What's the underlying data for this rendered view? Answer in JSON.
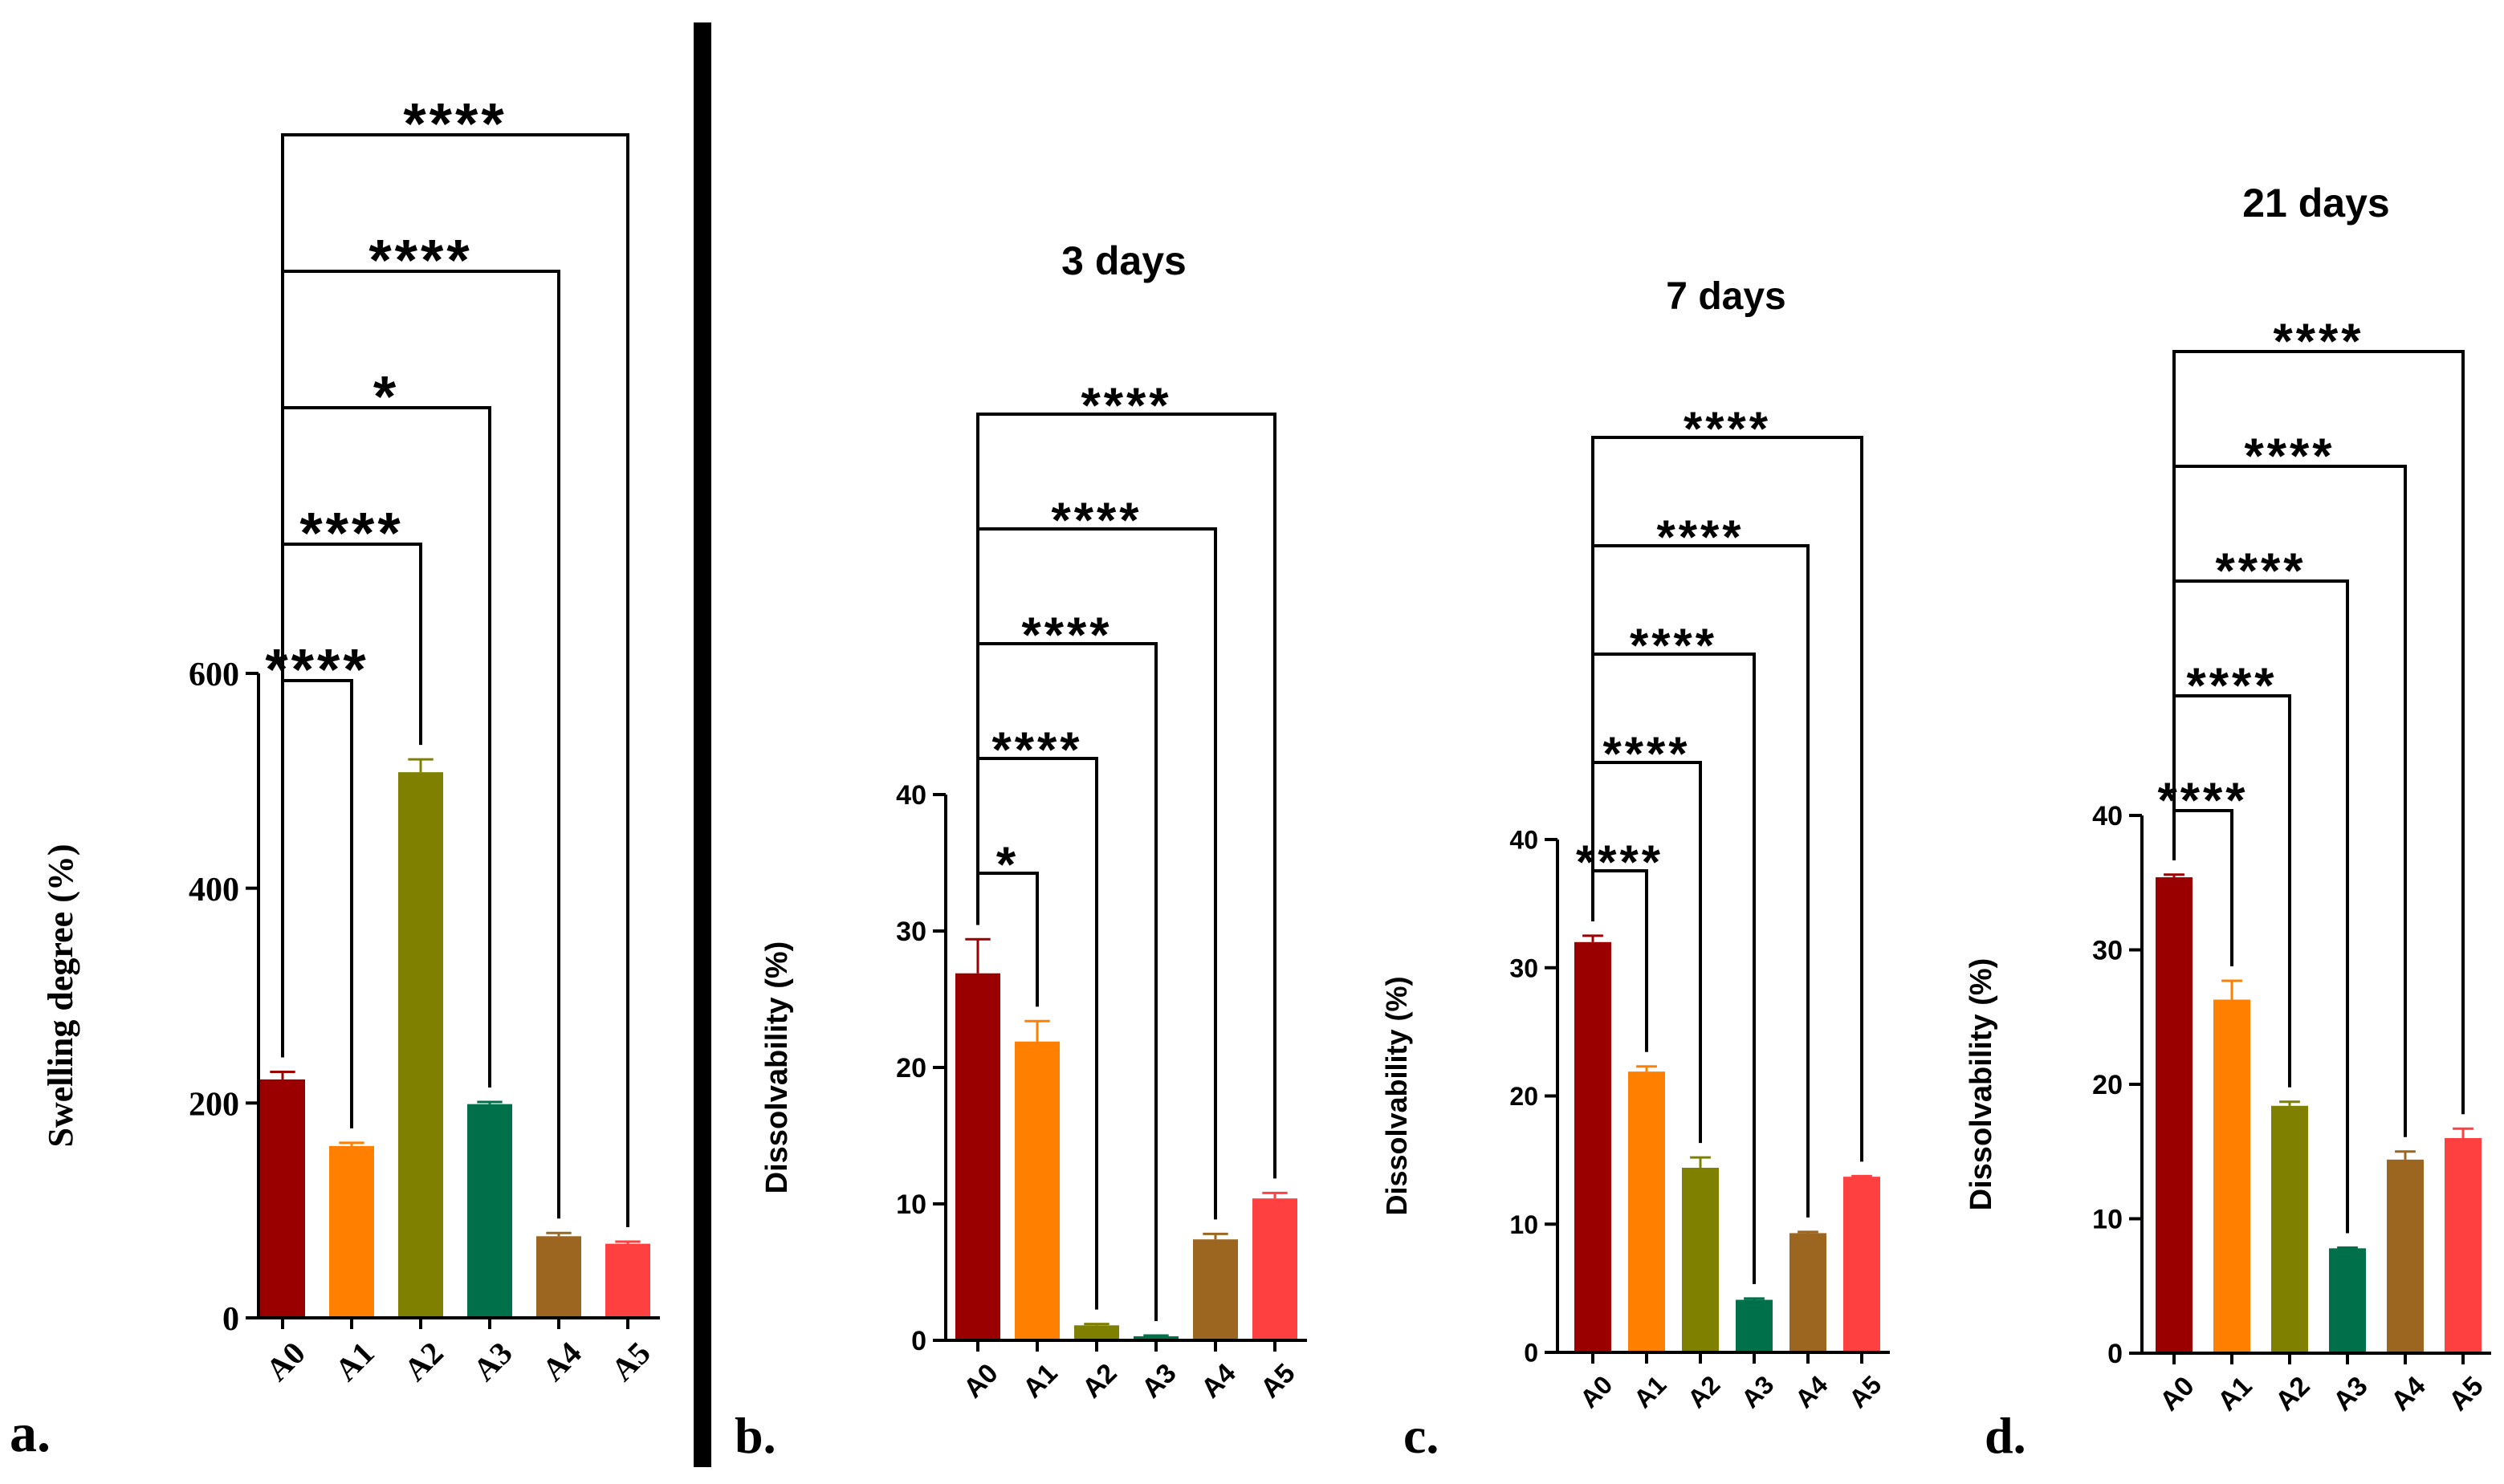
{
  "figure": {
    "colors": [
      "#9b0000",
      "#ff8000",
      "#808000",
      "#00704a",
      "#9c6520",
      "#ff4040"
    ]
  },
  "chart_data": [
    {
      "type": "bar",
      "panel_label": "a.",
      "title": "",
      "xlabel": "",
      "ylabel": "Swelling degree (%)",
      "ylim": [
        0,
        600
      ],
      "yticks": [
        0,
        200,
        400,
        600
      ],
      "yticklabels": [
        "0",
        "200",
        "400",
        "600"
      ],
      "categories": [
        "A0",
        "A1",
        "A2",
        "A3",
        "A4",
        "A5"
      ],
      "values": [
        222,
        160,
        508,
        199,
        76,
        69
      ],
      "errors": [
        7,
        3,
        12,
        2,
        3,
        2
      ],
      "comparisons": [
        {
          "from": "A0",
          "to": "A1",
          "label": "****"
        },
        {
          "from": "A0",
          "to": "A2",
          "label": "****"
        },
        {
          "from": "A0",
          "to": "A3",
          "label": "*"
        },
        {
          "from": "A0",
          "to": "A4",
          "label": "****"
        },
        {
          "from": "A0",
          "to": "A5",
          "label": "****"
        }
      ]
    },
    {
      "type": "bar",
      "panel_label": "b.",
      "title": "3 days",
      "xlabel": "",
      "ylabel": "Dissolvability (%)",
      "ylim": [
        0,
        40
      ],
      "yticks": [
        0,
        10,
        20,
        30,
        40
      ],
      "yticklabels": [
        "0",
        "10",
        "20",
        "30",
        "40"
      ],
      "categories": [
        "A0",
        "A1",
        "A2",
        "A3",
        "A4",
        "A5"
      ],
      "values": [
        26.9,
        21.9,
        1.1,
        0.3,
        7.4,
        10.4
      ],
      "errors": [
        2.5,
        1.5,
        0.1,
        0.05,
        0.4,
        0.4
      ],
      "comparisons": [
        {
          "from": "A0",
          "to": "A1",
          "label": "*"
        },
        {
          "from": "A0",
          "to": "A2",
          "label": "****"
        },
        {
          "from": "A0",
          "to": "A3",
          "label": "****"
        },
        {
          "from": "A0",
          "to": "A4",
          "label": "****"
        },
        {
          "from": "A0",
          "to": "A5",
          "label": "****"
        }
      ]
    },
    {
      "type": "bar",
      "panel_label": "c.",
      "title": "7 days",
      "xlabel": "",
      "ylabel": "Dissolvability (%)",
      "ylim": [
        0,
        40
      ],
      "yticks": [
        0,
        10,
        20,
        30,
        40
      ],
      "yticklabels": [
        "0",
        "10",
        "20",
        "30",
        "40"
      ],
      "categories": [
        "A0",
        "A1",
        "A2",
        "A3",
        "A4",
        "A5"
      ],
      "values": [
        32.0,
        21.9,
        14.4,
        4.1,
        9.3,
        13.7
      ],
      "errors": [
        0.5,
        0.4,
        0.8,
        0.1,
        0.1,
        0.05
      ],
      "comparisons": [
        {
          "from": "A0",
          "to": "A1",
          "label": "****"
        },
        {
          "from": "A0",
          "to": "A2",
          "label": "****"
        },
        {
          "from": "A0",
          "to": "A3",
          "label": "****"
        },
        {
          "from": "A0",
          "to": "A4",
          "label": "****"
        },
        {
          "from": "A0",
          "to": "A5",
          "label": "****"
        }
      ]
    },
    {
      "type": "bar",
      "panel_label": "d.",
      "title": "21 days",
      "xlabel": "",
      "ylabel": "Dissolvability (%)",
      "ylim": [
        0,
        40
      ],
      "yticks": [
        0,
        10,
        20,
        30,
        40
      ],
      "yticklabels": [
        "0",
        "10",
        "20",
        "30",
        "40"
      ],
      "categories": [
        "A0",
        "A1",
        "A2",
        "A3",
        "A4",
        "A5"
      ],
      "values": [
        35.4,
        26.3,
        18.4,
        7.8,
        14.4,
        16.0
      ],
      "errors": [
        0.2,
        1.4,
        0.3,
        0.05,
        0.6,
        0.7
      ],
      "comparisons": [
        {
          "from": "A0",
          "to": "A1",
          "label": "****"
        },
        {
          "from": "A0",
          "to": "A2",
          "label": "****"
        },
        {
          "from": "A0",
          "to": "A3",
          "label": "****"
        },
        {
          "from": "A0",
          "to": "A4",
          "label": "****"
        },
        {
          "from": "A0",
          "to": "A5",
          "label": "****"
        }
      ]
    }
  ]
}
